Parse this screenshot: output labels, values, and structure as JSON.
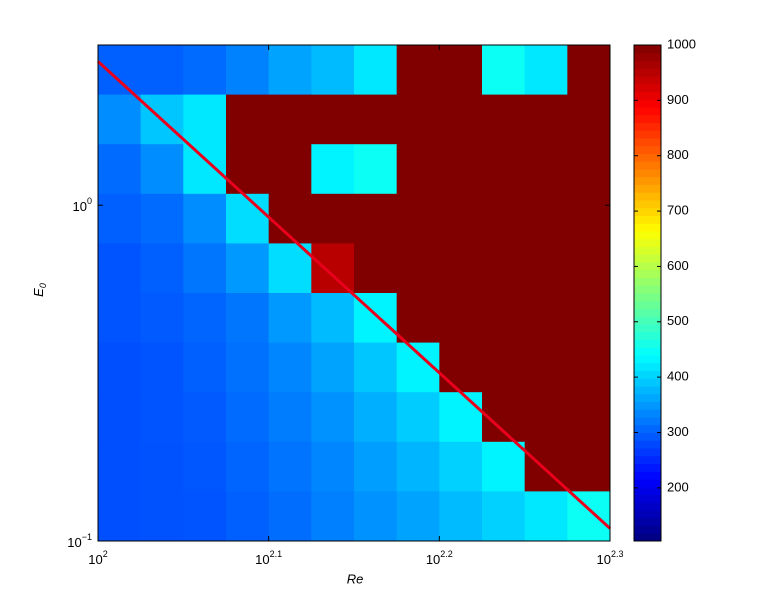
{
  "chart_data": {
    "type": "heatmap",
    "x_label": "Re",
    "y_label": "E_0",
    "xscale": "log",
    "yscale": "log",
    "xlim": [
      100,
      199.53
    ],
    "ylim": [
      0.1,
      3.0
    ],
    "xticks": [
      {
        "value": 100,
        "label": "10^2"
      },
      {
        "value": 125.89,
        "label": "10^2.1"
      },
      {
        "value": 158.49,
        "label": "10^2.2"
      },
      {
        "value": 199.53,
        "label": "10^2.3"
      }
    ],
    "yticks": [
      {
        "value": 0.1,
        "label": "10^−1"
      },
      {
        "value": 1,
        "label": "10^0"
      }
    ],
    "colormap": "jet",
    "clim": [
      104,
      1000
    ],
    "cticks": [
      200,
      300,
      400,
      500,
      600,
      700,
      800,
      900,
      1000
    ],
    "z": [
      [
        300,
        300,
        310,
        330,
        360,
        380,
        420,
        1000,
        1000,
        450,
        420,
        1000
      ],
      [
        340,
        390,
        420,
        1000,
        1000,
        1000,
        1000,
        1000,
        1000,
        1000,
        1000,
        1000
      ],
      [
        310,
        340,
        420,
        1000,
        1000,
        430,
        450,
        1000,
        1000,
        1000,
        1000,
        1000
      ],
      [
        300,
        310,
        340,
        410,
        1000,
        1000,
        1000,
        1000,
        1000,
        1000,
        1000,
        1000
      ],
      [
        290,
        300,
        320,
        350,
        410,
        950,
        1000,
        1000,
        1000,
        1000,
        1000,
        1000
      ],
      [
        290,
        295,
        305,
        320,
        350,
        380,
        430,
        1000,
        1000,
        1000,
        1000,
        1000
      ],
      [
        285,
        290,
        300,
        315,
        335,
        360,
        390,
        430,
        1000,
        1000,
        1000,
        1000
      ],
      [
        285,
        290,
        295,
        310,
        325,
        345,
        370,
        395,
        430,
        1000,
        1000,
        1000
      ],
      [
        285,
        288,
        292,
        305,
        318,
        335,
        355,
        375,
        400,
        430,
        1000,
        1000
      ],
      [
        285,
        288,
        290,
        300,
        312,
        328,
        345,
        360,
        380,
        400,
        420,
        450
      ]
    ],
    "line": {
      "x": [
        100,
        199.53
      ],
      "y": [
        2.68,
        0.109
      ],
      "color": "#e8001c"
    }
  }
}
